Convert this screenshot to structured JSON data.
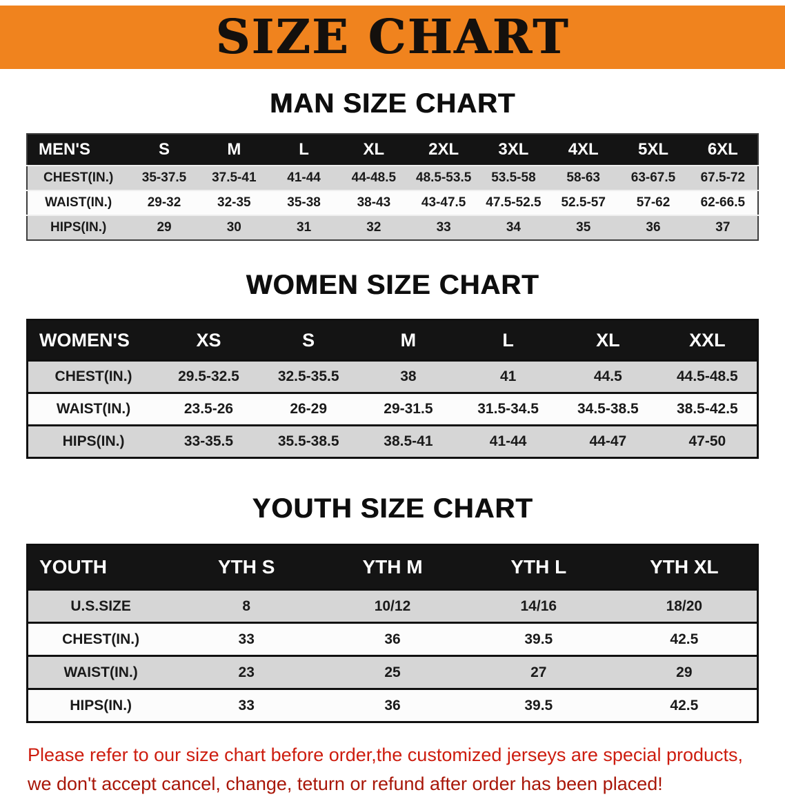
{
  "banner": {
    "title": "SIZE CHART",
    "bg_color": "#f0831e",
    "text_color": "#14100d"
  },
  "colors": {
    "table_header_bg": "#141414",
    "table_row_gray": "#d6d6d6",
    "table_row_white": "#fcfcfc",
    "disclaimer_red": "#cd1c0e"
  },
  "sections": [
    {
      "heading": "MAN SIZE CHART",
      "table": {
        "header": [
          "MEN'S",
          "S",
          "M",
          "L",
          "XL",
          "2XL",
          "3XL",
          "4XL",
          "5XL",
          "6XL"
        ],
        "rows": [
          {
            "label": "CHEST(IN.)",
            "values": [
              "35-37.5",
              "37.5-41",
              "41-44",
              "44-48.5",
              "48.5-53.5",
              "53.5-58",
              "58-63",
              "63-67.5",
              "67.5-72"
            ]
          },
          {
            "label": "WAIST(IN.)",
            "values": [
              "29-32",
              "32-35",
              "35-38",
              "38-43",
              "43-47.5",
              "47.5-52.5",
              "52.5-57",
              "57-62",
              "62-66.5"
            ]
          },
          {
            "label": "HIPS(IN.)",
            "values": [
              "29",
              "30",
              "31",
              "32",
              "33",
              "34",
              "35",
              "36",
              "37"
            ]
          }
        ]
      }
    },
    {
      "heading": "WOMEN SIZE CHART",
      "table": {
        "header": [
          "WOMEN'S",
          "XS",
          "S",
          "M",
          "L",
          "XL",
          "XXL"
        ],
        "rows": [
          {
            "label": "CHEST(IN.)",
            "values": [
              "29.5-32.5",
              "32.5-35.5",
              "38",
              "41",
              "44.5",
              "44.5-48.5"
            ]
          },
          {
            "label": "WAIST(IN.)",
            "values": [
              "23.5-26",
              "26-29",
              "29-31.5",
              "31.5-34.5",
              "34.5-38.5",
              "38.5-42.5"
            ]
          },
          {
            "label": "HIPS(IN.)",
            "values": [
              "33-35.5",
              "35.5-38.5",
              "38.5-41",
              "41-44",
              "44-47",
              "47-50"
            ]
          }
        ]
      }
    },
    {
      "heading": "YOUTH SIZE CHART",
      "table": {
        "header": [
          "YOUTH",
          "YTH S",
          "YTH M",
          "YTH L",
          "YTH XL"
        ],
        "rows": [
          {
            "label": "U.S.SIZE",
            "values": [
              "8",
              "10/12",
              "14/16",
              "18/20"
            ]
          },
          {
            "label": "CHEST(IN.)",
            "values": [
              "33",
              "36",
              "39.5",
              "42.5"
            ]
          },
          {
            "label": "WAIST(IN.)",
            "values": [
              "23",
              "25",
              "27",
              "29"
            ]
          },
          {
            "label": "HIPS(IN.)",
            "values": [
              "33",
              "36",
              "39.5",
              "42.5"
            ]
          }
        ]
      }
    }
  ],
  "disclaimer": {
    "line1": "Please refer to our size chart before order,the customized jerseys are special products,",
    "line2": "we don't accept cancel, change, teturn or refund after order has been placed!"
  }
}
